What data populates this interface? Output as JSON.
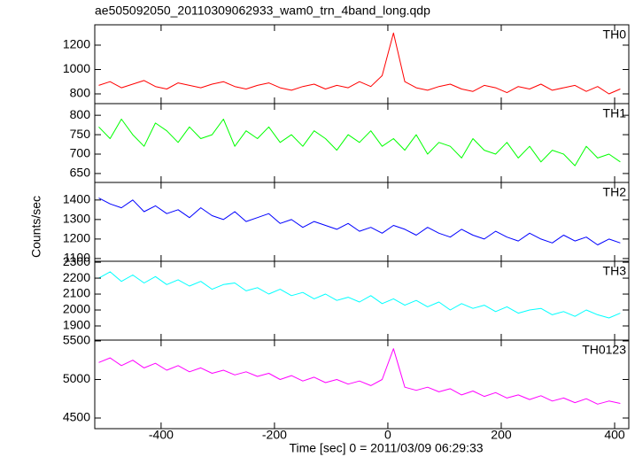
{
  "title": "ae505092050_20110309062933_wam0_trn_4band_long.qdp",
  "xlabel": "Time [sec] 0 = 2011/03/09 06:29:33",
  "ylabel": "Counts/sec",
  "chart_data": [
    {
      "type": "line",
      "x": [
        -510,
        -490,
        -470,
        -450,
        -430,
        -410,
        -390,
        -370,
        -350,
        -330,
        -310,
        -290,
        -270,
        -250,
        -230,
        -210,
        -190,
        -170,
        -150,
        -130,
        -110,
        -90,
        -70,
        -50,
        -30,
        -10,
        10,
        30,
        50,
        70,
        90,
        110,
        130,
        150,
        170,
        190,
        210,
        230,
        250,
        270,
        290,
        310,
        330,
        350,
        370,
        390,
        410
      ],
      "xlim": [
        -517,
        425
      ],
      "xticks": [
        -400,
        -200,
        0,
        200,
        400
      ],
      "ylim": [
        720,
        1367
      ],
      "yticks": [
        800,
        1000,
        1200
      ],
      "series": [
        {
          "name": "TH0",
          "color": "#ff0000",
          "values": [
            870,
            900,
            850,
            880,
            910,
            860,
            840,
            890,
            870,
            850,
            880,
            900,
            860,
            840,
            870,
            890,
            850,
            830,
            860,
            880,
            840,
            870,
            850,
            900,
            860,
            950,
            1300,
            900,
            850,
            830,
            860,
            880,
            840,
            820,
            870,
            850,
            810,
            860,
            840,
            880,
            830,
            850,
            870,
            820,
            860,
            800,
            840
          ]
        }
      ]
    },
    {
      "type": "line",
      "x": [
        -510,
        -490,
        -470,
        -450,
        -430,
        -410,
        -390,
        -370,
        -350,
        -330,
        -310,
        -290,
        -270,
        -250,
        -230,
        -210,
        -190,
        -170,
        -150,
        -130,
        -110,
        -90,
        -70,
        -50,
        -30,
        -10,
        10,
        30,
        50,
        70,
        90,
        110,
        130,
        150,
        170,
        190,
        210,
        230,
        250,
        270,
        290,
        310,
        330,
        350,
        370,
        390,
        410
      ],
      "xlim": [
        -517,
        425
      ],
      "xticks": [
        -400,
        -200,
        0,
        200,
        400
      ],
      "ylim": [
        627,
        830
      ],
      "yticks": [
        650,
        700,
        750,
        800
      ],
      "series": [
        {
          "name": "TH1",
          "color": "#00ff00",
          "values": [
            770,
            740,
            790,
            750,
            720,
            780,
            760,
            730,
            770,
            740,
            750,
            790,
            720,
            760,
            740,
            770,
            730,
            750,
            720,
            760,
            740,
            710,
            750,
            730,
            760,
            720,
            740,
            710,
            750,
            700,
            730,
            720,
            690,
            740,
            710,
            700,
            730,
            690,
            720,
            680,
            710,
            700,
            670,
            720,
            690,
            700,
            680
          ]
        }
      ]
    },
    {
      "type": "line",
      "x": [
        -510,
        -490,
        -470,
        -450,
        -430,
        -410,
        -390,
        -370,
        -350,
        -330,
        -310,
        -290,
        -270,
        -250,
        -230,
        -210,
        -190,
        -170,
        -150,
        -130,
        -110,
        -90,
        -70,
        -50,
        -30,
        -10,
        10,
        30,
        50,
        70,
        90,
        110,
        130,
        150,
        170,
        190,
        210,
        230,
        250,
        270,
        290,
        310,
        330,
        350,
        370,
        390,
        410
      ],
      "xlim": [
        -517,
        425
      ],
      "xticks": [
        -400,
        -200,
        0,
        200,
        400
      ],
      "ylim": [
        1086,
        1490
      ],
      "yticks": [
        1100,
        1200,
        1300,
        1400
      ],
      "series": [
        {
          "name": "TH2",
          "color": "#0000ff",
          "values": [
            1410,
            1380,
            1360,
            1400,
            1340,
            1370,
            1330,
            1350,
            1310,
            1360,
            1320,
            1300,
            1340,
            1290,
            1310,
            1330,
            1280,
            1300,
            1260,
            1290,
            1270,
            1250,
            1280,
            1240,
            1260,
            1230,
            1270,
            1250,
            1220,
            1260,
            1230,
            1210,
            1250,
            1220,
            1200,
            1240,
            1210,
            1190,
            1230,
            1200,
            1180,
            1220,
            1190,
            1210,
            1170,
            1200,
            1180
          ]
        }
      ]
    },
    {
      "type": "line",
      "x": [
        -510,
        -490,
        -470,
        -450,
        -430,
        -410,
        -390,
        -370,
        -350,
        -330,
        -310,
        -290,
        -270,
        -250,
        -230,
        -210,
        -190,
        -170,
        -150,
        -130,
        -110,
        -90,
        -70,
        -50,
        -30,
        -10,
        10,
        30,
        50,
        70,
        90,
        110,
        130,
        150,
        170,
        190,
        210,
        230,
        250,
        270,
        290,
        310,
        330,
        350,
        370,
        390,
        410
      ],
      "xlim": [
        -517,
        425
      ],
      "xticks": [
        -400,
        -200,
        0,
        200,
        400
      ],
      "ylim": [
        1811,
        2306
      ],
      "yticks": [
        1900,
        2000,
        2100,
        2200,
        2300
      ],
      "series": [
        {
          "name": "TH3",
          "color": "#00ffff",
          "values": [
            2200,
            2240,
            2180,
            2220,
            2170,
            2210,
            2160,
            2190,
            2150,
            2180,
            2130,
            2160,
            2170,
            2120,
            2140,
            2100,
            2130,
            2090,
            2110,
            2070,
            2100,
            2060,
            2080,
            2050,
            2090,
            2040,
            2070,
            2030,
            2060,
            2020,
            2050,
            2000,
            2040,
            2010,
            2030,
            1990,
            2020,
            1980,
            2000,
            2010,
            1970,
            1990,
            1960,
            2000,
            1970,
            1950,
            1980
          ]
        }
      ]
    },
    {
      "type": "line",
      "x": [
        -510,
        -490,
        -470,
        -450,
        -430,
        -410,
        -390,
        -370,
        -350,
        -330,
        -310,
        -290,
        -270,
        -250,
        -230,
        -210,
        -190,
        -170,
        -150,
        -130,
        -110,
        -90,
        -70,
        -50,
        -30,
        -10,
        10,
        30,
        50,
        70,
        90,
        110,
        130,
        150,
        170,
        190,
        210,
        230,
        250,
        270,
        290,
        310,
        330,
        350,
        370,
        390,
        410
      ],
      "xlim": [
        -517,
        425
      ],
      "xticks": [
        -400,
        -200,
        0,
        200,
        400
      ],
      "ylim": [
        4362,
        5511
      ],
      "yticks": [
        4500,
        5000,
        5500
      ],
      "series": [
        {
          "name": "TH0123",
          "color": "#ff00ff",
          "values": [
            5220,
            5280,
            5180,
            5250,
            5150,
            5210,
            5120,
            5180,
            5100,
            5150,
            5080,
            5120,
            5060,
            5100,
            5040,
            5080,
            5000,
            5050,
            4980,
            5030,
            4960,
            5000,
            4940,
            4980,
            4920,
            5000,
            5400,
            4900,
            4860,
            4900,
            4840,
            4880,
            4800,
            4850,
            4780,
            4830,
            4760,
            4800,
            4740,
            4790,
            4720,
            4760,
            4700,
            4750,
            4680,
            4720,
            4690
          ]
        }
      ]
    }
  ]
}
